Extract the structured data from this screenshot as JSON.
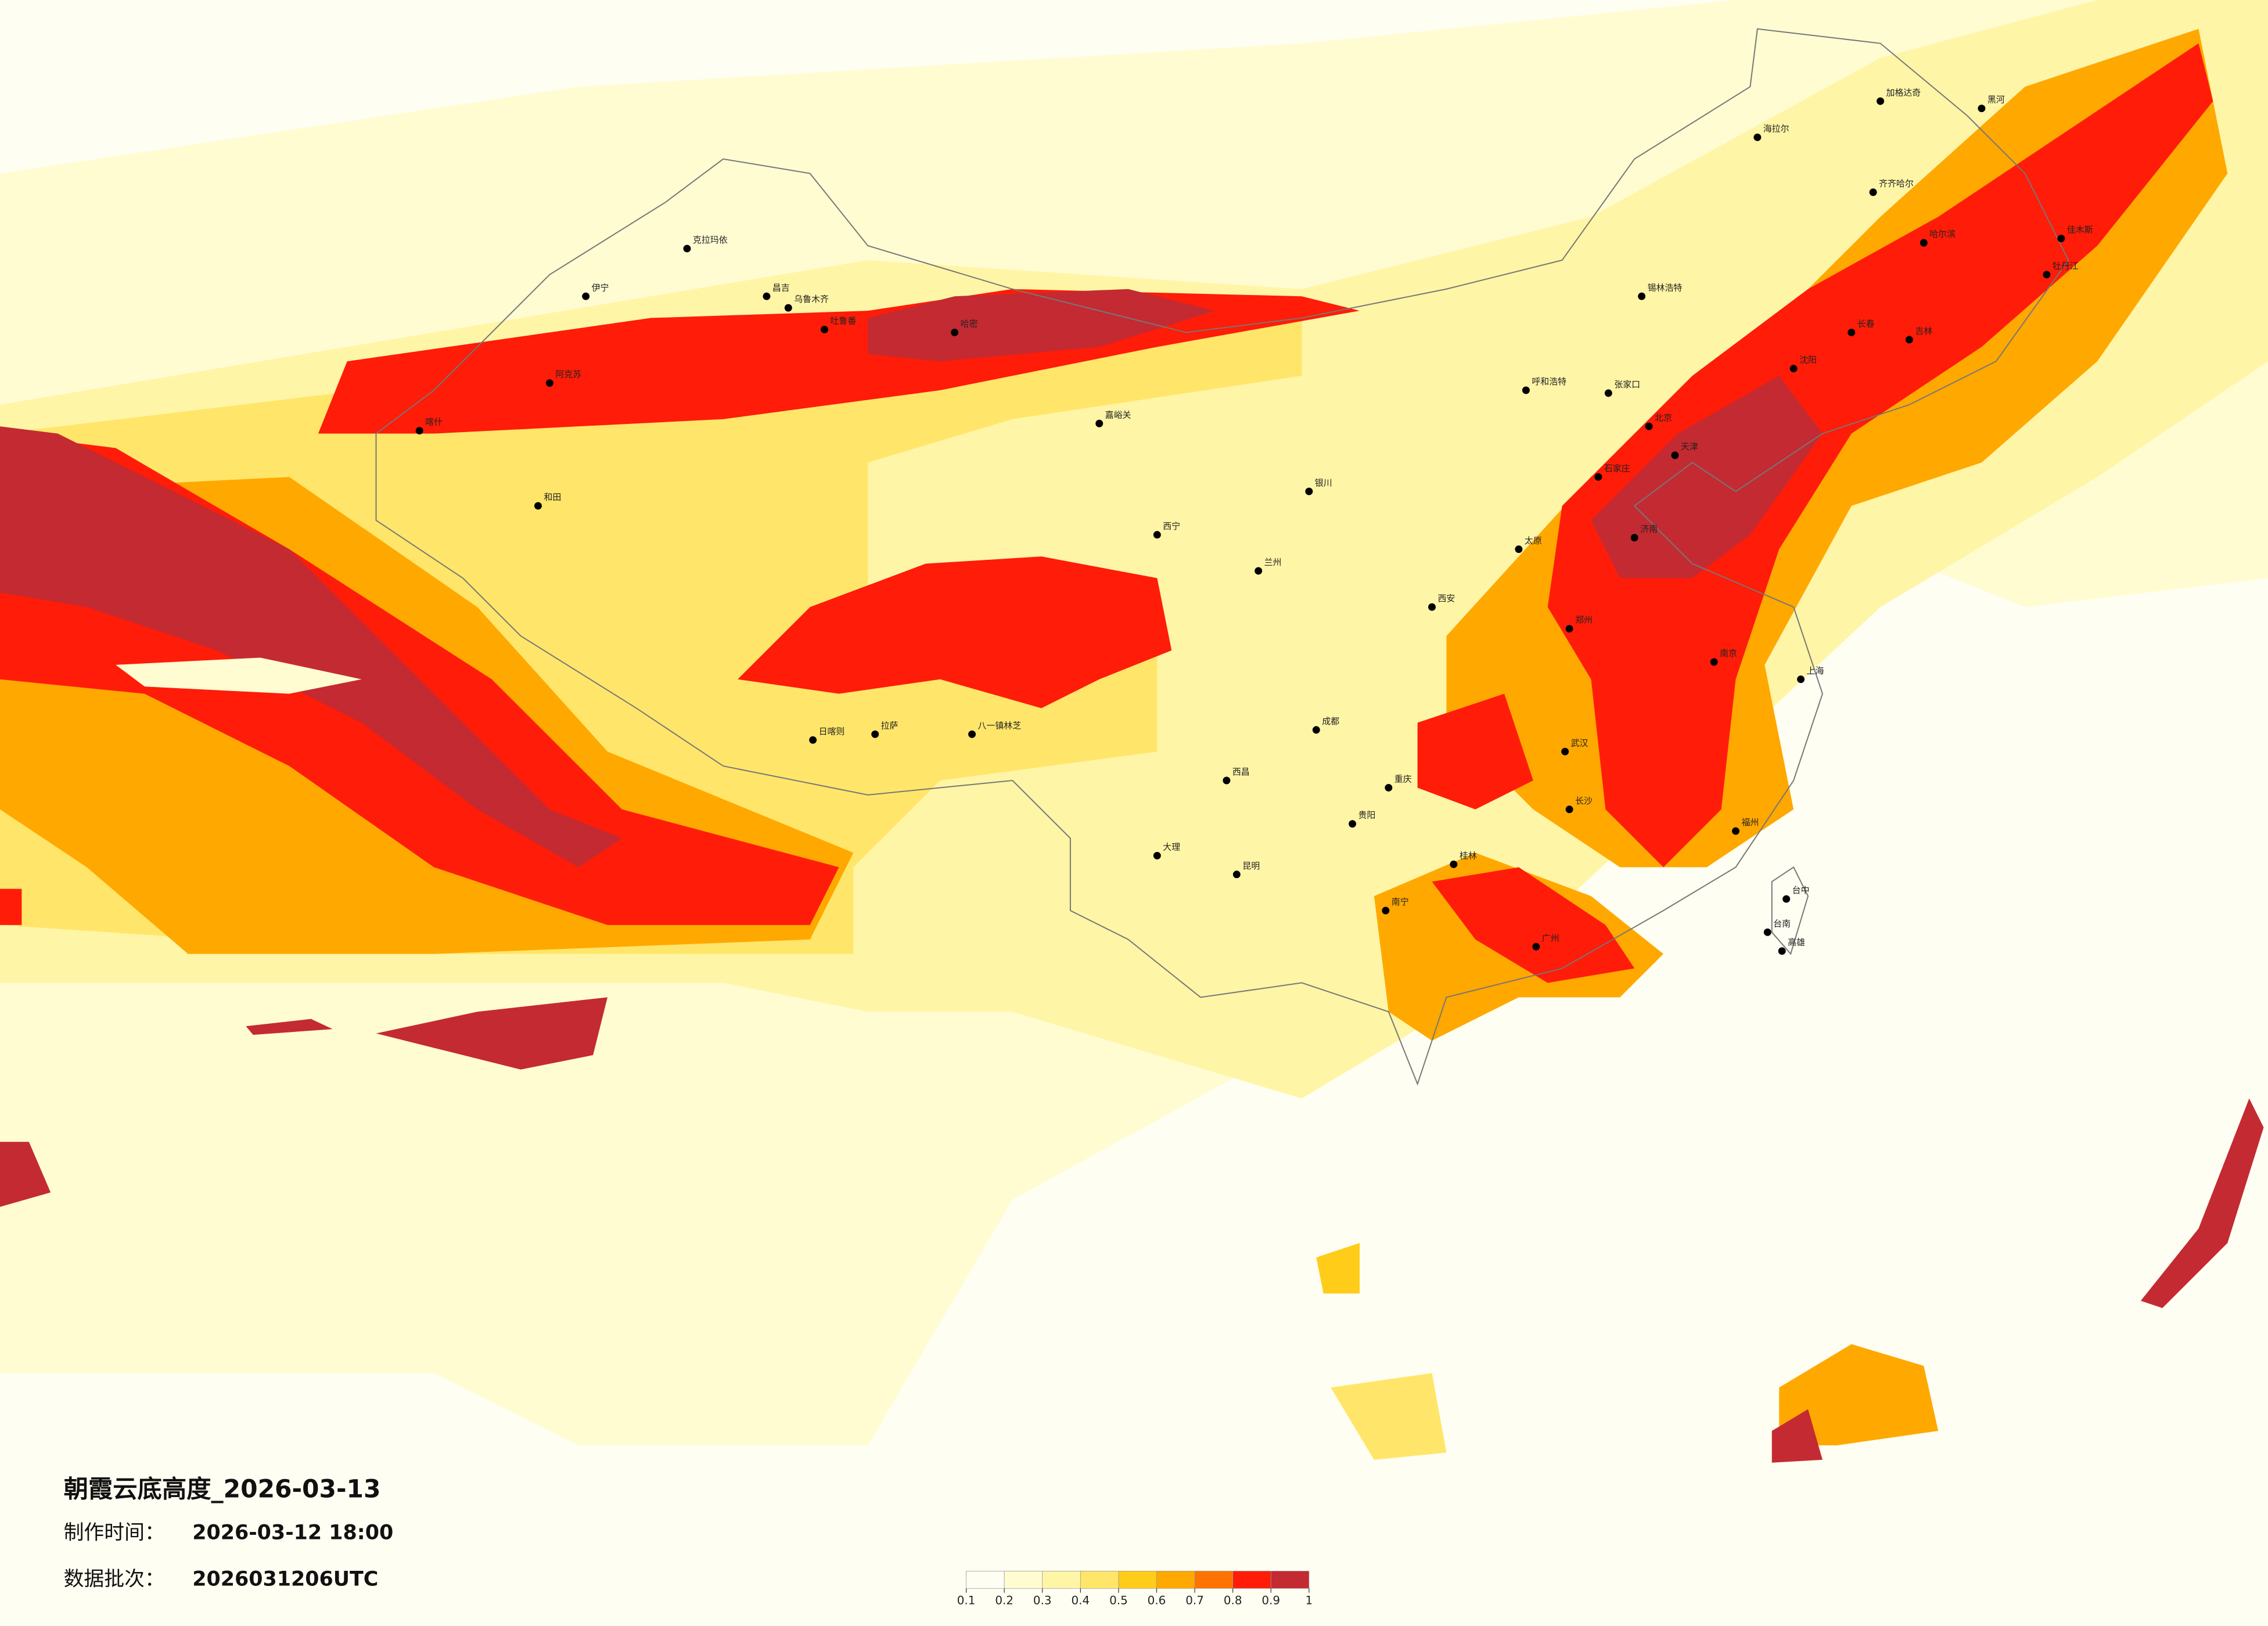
{
  "title": "朝霞云底高度_2026-03-13",
  "made_label": "制作时间：",
  "made_time": "2026-03-12 18:00",
  "batch_label": "数据批次：",
  "batch": "2026031206UTC",
  "legend": {
    "ticks": [
      0.1,
      0.2,
      0.3,
      0.4,
      0.5,
      0.6,
      0.7,
      0.8,
      0.9,
      1
    ],
    "colors": [
      "#fffef2",
      "#fffcd2",
      "#fff5a6",
      "#ffe66a",
      "#ffcc1a",
      "#ffa800",
      "#ff7400",
      "#ff1c08",
      "#c42a32"
    ]
  },
  "cities": [
    "海拉尔",
    "加格达奇",
    "黑河",
    "齐齐哈尔",
    "哈尔滨",
    "佳木斯",
    "牡丹江",
    "长春",
    "吉林",
    "沈阳",
    "伊宁",
    "克拉玛依",
    "昌吉",
    "乌鲁木齐",
    "吐鲁番",
    "哈密",
    "阿克苏",
    "喀什",
    "和田",
    "锡林浩特",
    "呼和浩特",
    "张家口",
    "嘉峪关",
    "西宁",
    "兰州",
    "银川",
    "日喀则",
    "拉萨",
    "八一镇林芝",
    "西昌",
    "昆明",
    "大理",
    "贵阳",
    "桂林",
    "南宁",
    "广州",
    "福州",
    "台中",
    "台南",
    "高雄",
    "上海",
    "南京",
    "武汉",
    "长沙",
    "郑州",
    "济南",
    "北京",
    "天津",
    "石家庄",
    "太原",
    "西安",
    "成都",
    "重庆"
  ]
}
